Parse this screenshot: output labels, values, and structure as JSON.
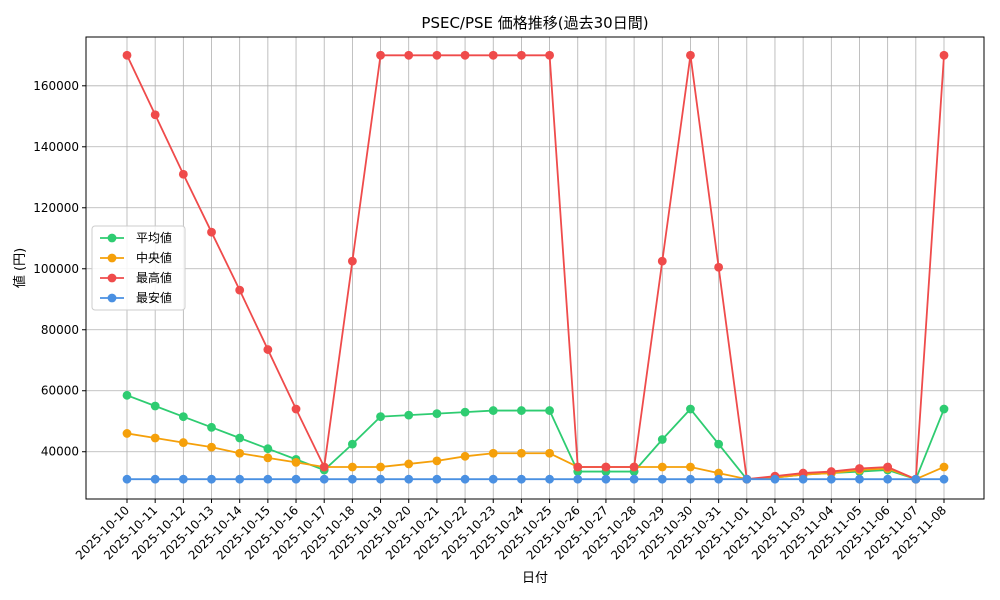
{
  "chart_data": {
    "type": "line",
    "title": "PSEC/PSE 価格推移(過去30日間)",
    "xlabel": "日付",
    "ylabel": "値 (円)",
    "ylim": [
      24500,
      176000
    ],
    "yticks": [
      40000,
      60000,
      80000,
      100000,
      120000,
      140000,
      160000
    ],
    "grid": true,
    "legend_position": "center-left",
    "categories": [
      "2025-10-10",
      "2025-10-11",
      "2025-10-12",
      "2025-10-13",
      "2025-10-14",
      "2025-10-15",
      "2025-10-16",
      "2025-10-17",
      "2025-10-18",
      "2025-10-19",
      "2025-10-20",
      "2025-10-21",
      "2025-10-22",
      "2025-10-23",
      "2025-10-24",
      "2025-10-25",
      "2025-10-26",
      "2025-10-27",
      "2025-10-28",
      "2025-10-29",
      "2025-10-30",
      "2025-10-31",
      "2025-11-01",
      "2025-11-02",
      "2025-11-03",
      "2025-11-04",
      "2025-11-05",
      "2025-11-06",
      "2025-11-07",
      "2025-11-08"
    ],
    "series": [
      {
        "name": "平均値",
        "color": "#2ecc71",
        "values": [
          58500,
          55000,
          51500,
          48000,
          44500,
          41000,
          37500,
          34000,
          42500,
          51500,
          52000,
          52500,
          53000,
          53500,
          53500,
          53500,
          33500,
          33500,
          33500,
          44000,
          54000,
          42500,
          31000,
          31500,
          32500,
          33000,
          33500,
          34000,
          31000,
          54000
        ]
      },
      {
        "name": "中央値",
        "color": "#f5a00a",
        "values": [
          46000,
          44500,
          43000,
          41500,
          39500,
          38000,
          36500,
          35000,
          35000,
          35000,
          36000,
          37000,
          38500,
          39500,
          39500,
          39500,
          35000,
          35000,
          35000,
          35000,
          35000,
          33000,
          31000,
          31500,
          32500,
          33000,
          34000,
          34500,
          31000,
          35000
        ]
      },
      {
        "name": "最高値",
        "color": "#ef4b4b",
        "values": [
          170000,
          150500,
          131000,
          112000,
          93000,
          73500,
          54000,
          35000,
          102500,
          170000,
          170000,
          170000,
          170000,
          170000,
          170000,
          170000,
          35000,
          35000,
          35000,
          102500,
          170000,
          100500,
          31000,
          32000,
          33000,
          33500,
          34500,
          35000,
          31000,
          170000
        ]
      },
      {
        "name": "最安値",
        "color": "#4a90e2",
        "values": [
          31000,
          31000,
          31000,
          31000,
          31000,
          31000,
          31000,
          31000,
          31000,
          31000,
          31000,
          31000,
          31000,
          31000,
          31000,
          31000,
          31000,
          31000,
          31000,
          31000,
          31000,
          31000,
          31000,
          31000,
          31000,
          31000,
          31000,
          31000,
          31000,
          31000
        ]
      }
    ]
  }
}
